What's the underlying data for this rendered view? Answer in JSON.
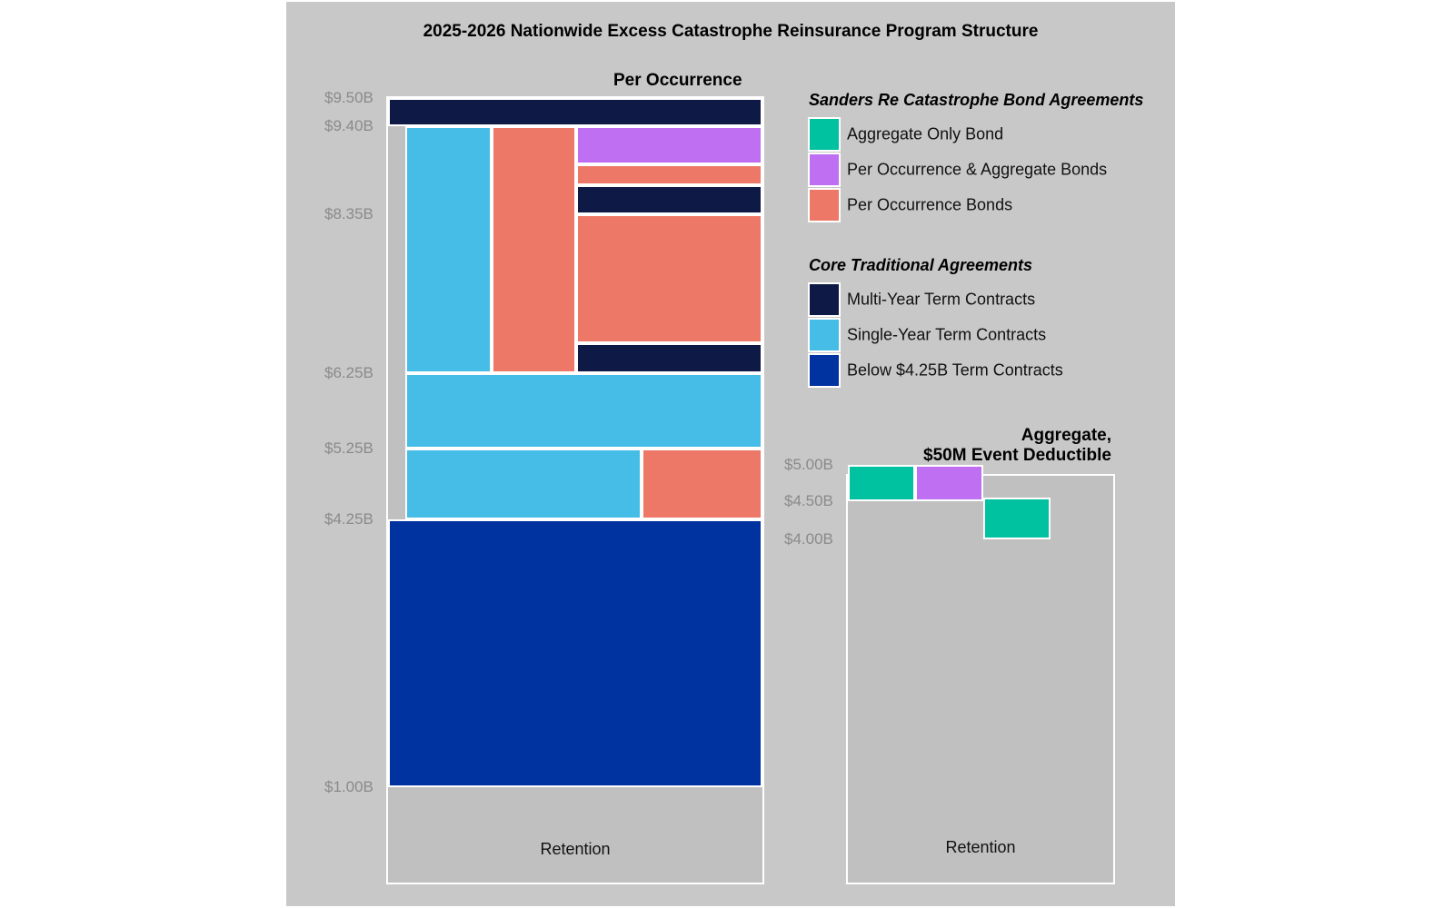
{
  "chart_data": {
    "type": "layer-diagram",
    "title": "2025-2026 Nationwide Excess Catastrophe Reinsurance Program Structure",
    "colors": {
      "aggregate_only_bond": "#00c2a0",
      "per_occ_agg_bonds": "#bf6ff2",
      "per_occ_bonds": "#ee7867",
      "multi_year": "#0e1a45",
      "single_year": "#45bde6",
      "below_425": "#0033a0",
      "retention": "#c0c0c0"
    },
    "legend": {
      "groups": [
        {
          "heading": "Sanders Re Catastrophe Bond Agreements",
          "items": [
            {
              "label": "Aggregate Only Bond",
              "color_key": "aggregate_only_bond"
            },
            {
              "label": "Per Occurrence & Aggregate Bonds",
              "color_key": "per_occ_agg_bonds"
            },
            {
              "label": "Per Occurrence Bonds",
              "color_key": "per_occ_bonds"
            }
          ]
        },
        {
          "heading": "Core Traditional Agreements",
          "items": [
            {
              "label": "Multi-Year Term Contracts",
              "color_key": "multi_year"
            },
            {
              "label": "Single-Year Term Contracts",
              "color_key": "single_year"
            },
            {
              "label": "Below $4.25B Term Contracts",
              "color_key": "below_425"
            }
          ]
        }
      ]
    },
    "per_occurrence": {
      "title": "Per Occurrence",
      "retention_label": "Retention",
      "ticks": [
        {
          "label": "$9.50B",
          "value": 9.5
        },
        {
          "label": "$9.40B",
          "value": 9.4
        },
        {
          "label": "$8.35B",
          "value": 8.35
        },
        {
          "label": "$6.25B",
          "value": 6.25
        },
        {
          "label": "$5.25B",
          "value": 5.25
        },
        {
          "label": "$4.25B",
          "value": 4.25
        },
        {
          "label": "$1.00B",
          "value": 1.0
        }
      ],
      "layers": [
        {
          "name": "multi-year-top",
          "color_key": "multi_year",
          "y0": 9.4,
          "y1": 9.5,
          "x0": 0,
          "x1": 1
        },
        {
          "name": "single-year-upper",
          "color_key": "single_year",
          "y0": 6.25,
          "y1": 9.4,
          "x0": 0.046,
          "x1": 0.276
        },
        {
          "name": "per-occ-bond-upper",
          "color_key": "per_occ_bonds",
          "y0": 6.25,
          "y1": 9.4,
          "x0": 0.276,
          "x1": 0.502
        },
        {
          "name": "per-occ-agg-bond",
          "color_key": "per_occ_agg_bonds",
          "y0": 8.95,
          "y1": 9.4,
          "x0": 0.502,
          "x1": 1
        },
        {
          "name": "per-occ-bond-thin",
          "color_key": "per_occ_bonds",
          "y0": 8.7,
          "y1": 8.95,
          "x0": 0.502,
          "x1": 1
        },
        {
          "name": "multi-year-mid",
          "color_key": "multi_year",
          "y0": 8.35,
          "y1": 8.7,
          "x0": 0.502,
          "x1": 1
        },
        {
          "name": "per-occ-bond-mid",
          "color_key": "per_occ_bonds",
          "y0": 6.65,
          "y1": 8.35,
          "x0": 0.502,
          "x1": 1
        },
        {
          "name": "multi-year-low",
          "color_key": "multi_year",
          "y0": 6.25,
          "y1": 6.65,
          "x0": 0.502,
          "x1": 1
        },
        {
          "name": "single-year-wide",
          "color_key": "single_year",
          "y0": 5.25,
          "y1": 6.25,
          "x0": 0.046,
          "x1": 1
        },
        {
          "name": "single-year-lower",
          "color_key": "single_year",
          "y0": 4.25,
          "y1": 5.25,
          "x0": 0.046,
          "x1": 0.678
        },
        {
          "name": "per-occ-bond-lower",
          "color_key": "per_occ_bonds",
          "y0": 4.25,
          "y1": 5.25,
          "x0": 0.678,
          "x1": 1
        },
        {
          "name": "below-425-term",
          "color_key": "below_425",
          "y0": 1.0,
          "y1": 4.25,
          "x0": 0,
          "x1": 1
        }
      ]
    },
    "aggregate": {
      "title_line1": "Aggregate,",
      "title_line2": "$50M Event Deductible",
      "retention_label": "Retention",
      "ticks": [
        {
          "label": "$5.00B",
          "value": 5.0
        },
        {
          "label": "$4.50B",
          "value": 4.5
        },
        {
          "label": "$4.00B",
          "value": 4.0
        }
      ],
      "layers": [
        {
          "name": "aggregate-only-bond-a",
          "color_key": "aggregate_only_bond",
          "y0": 4.5,
          "y1": 5.0,
          "x0": 0,
          "x1": 0.255
        },
        {
          "name": "per-occ-agg-bond-agg",
          "color_key": "per_occ_agg_bonds",
          "y0": 4.5,
          "y1": 5.0,
          "x0": 0.255,
          "x1": 0.51
        },
        {
          "name": "aggregate-only-bond-b",
          "color_key": "aggregate_only_bond",
          "y0": 4.0,
          "y1": 4.55,
          "x0": 0.51,
          "x1": 0.765
        }
      ]
    }
  }
}
